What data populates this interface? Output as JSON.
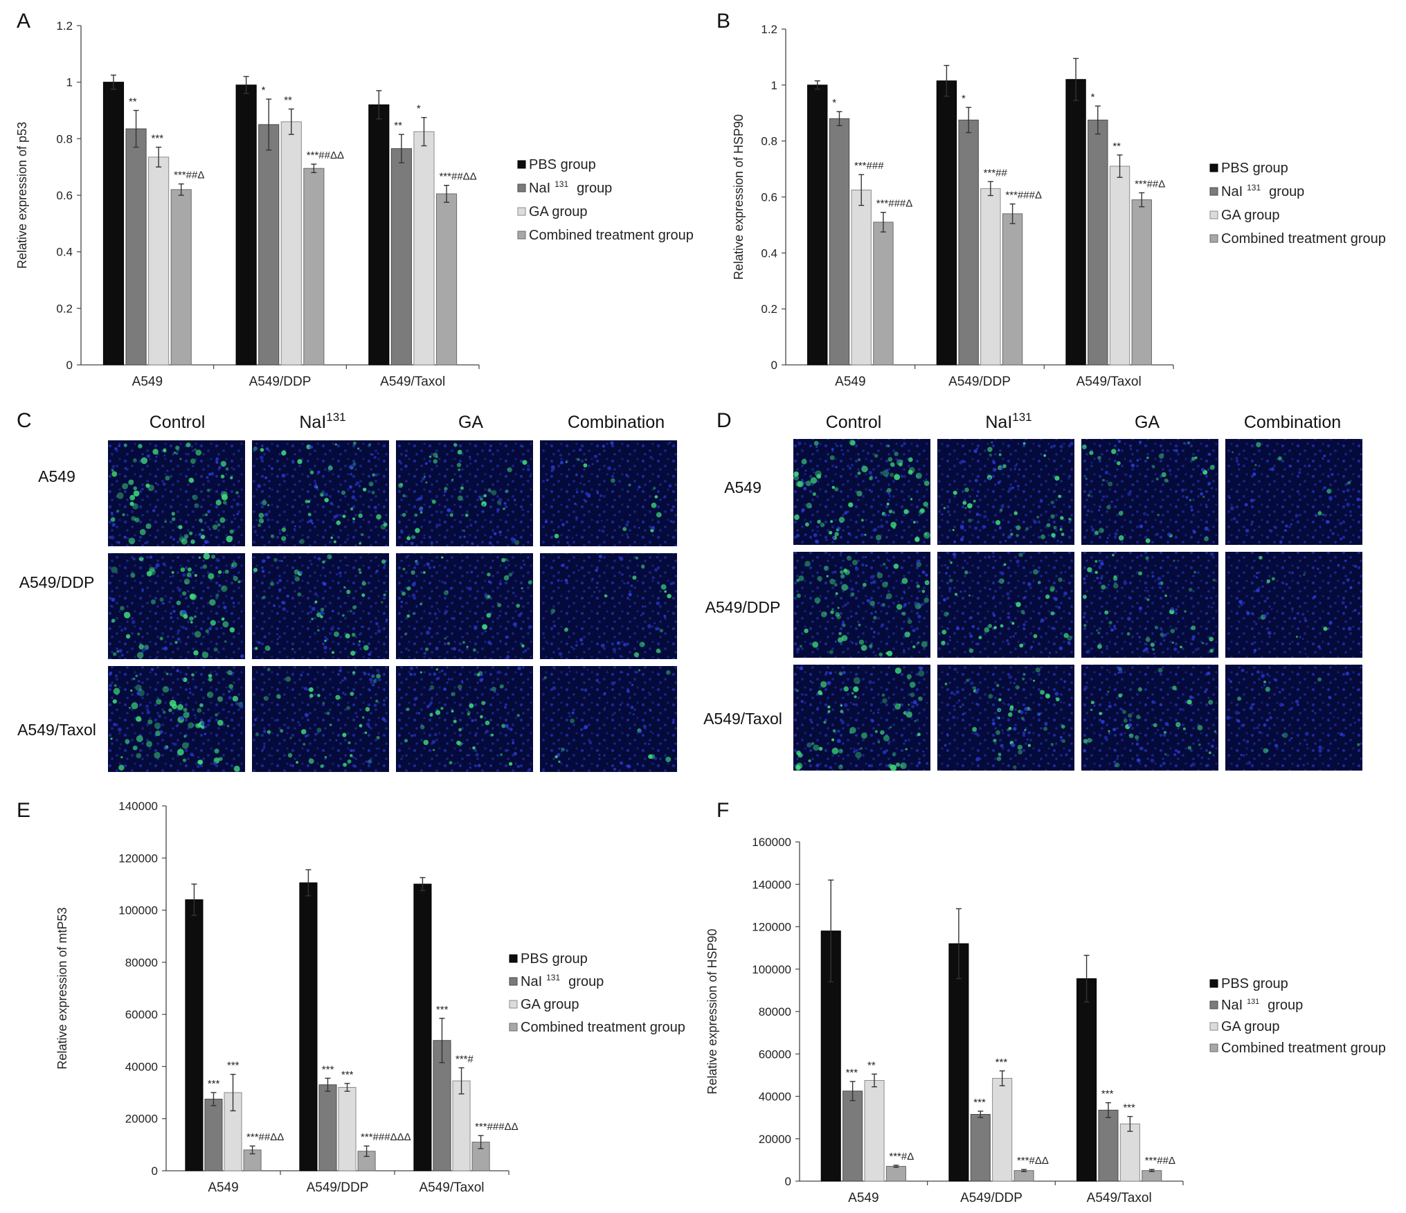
{
  "colors": {
    "pbs": "#0d0d0d",
    "nai": "#7b7b7b",
    "ga": "#dcdcdc",
    "combined": "#a8a8a8",
    "micro_bg": "#040a3a",
    "nucleus": "#2c3cd8",
    "fitc": "#3ee07a"
  },
  "legend": {
    "pbs": "PBS group",
    "nai_pre": "NaI",
    "nai_sup": "131",
    "nai_post": "group",
    "ga": "GA group",
    "combined": "Combined treatment group"
  },
  "chart_data": [
    {
      "panel": "A",
      "type": "bar",
      "ylabel": "Relative expression of p53",
      "ylim": [
        0,
        1.2
      ],
      "yticks": [
        "0",
        "0.2",
        "0.4",
        "0.6",
        "0.8",
        "1",
        "1.2"
      ],
      "categories": [
        "A549",
        "A549/DDP",
        "A549/Taxol"
      ],
      "series": [
        {
          "name": "PBS group",
          "values": [
            1.0,
            0.99,
            0.92
          ],
          "err": [
            0.025,
            0.03,
            0.05
          ],
          "labels": [
            "",
            "",
            ""
          ]
        },
        {
          "name": "NaI 131 group",
          "values": [
            0.835,
            0.85,
            0.765
          ],
          "err": [
            0.065,
            0.09,
            0.05
          ],
          "labels": [
            "**",
            "*",
            "**"
          ]
        },
        {
          "name": "GA group",
          "values": [
            0.735,
            0.86,
            0.825
          ],
          "err": [
            0.035,
            0.045,
            0.05
          ],
          "labels": [
            "***",
            "**",
            "*"
          ]
        },
        {
          "name": "Combined treatment group",
          "values": [
            0.62,
            0.695,
            0.605
          ],
          "err": [
            0.02,
            0.015,
            0.03
          ],
          "labels": [
            "***##Δ",
            "***##ΔΔ",
            "***##ΔΔ"
          ]
        }
      ]
    },
    {
      "panel": "B",
      "type": "bar",
      "ylabel": "Relative expression of HSP90",
      "ylim": [
        0,
        1.2
      ],
      "yticks": [
        "0",
        "0.2",
        "0.4",
        "0.6",
        "0.8",
        "1",
        "1.2"
      ],
      "categories": [
        "A549",
        "A549/DDP",
        "A549/Taxol"
      ],
      "series": [
        {
          "name": "PBS group",
          "values": [
            1.0,
            1.015,
            1.02
          ],
          "err": [
            0.015,
            0.055,
            0.075
          ],
          "labels": [
            "",
            "",
            ""
          ]
        },
        {
          "name": "NaI 131 group",
          "values": [
            0.88,
            0.875,
            0.875
          ],
          "err": [
            0.025,
            0.045,
            0.05
          ],
          "labels": [
            "*",
            "*",
            "*"
          ]
        },
        {
          "name": "GA group",
          "values": [
            0.625,
            0.63,
            0.71
          ],
          "err": [
            0.055,
            0.025,
            0.04
          ],
          "labels": [
            "***###",
            "***##",
            "**"
          ]
        },
        {
          "name": "Combined treatment group",
          "values": [
            0.51,
            0.54,
            0.59
          ],
          "err": [
            0.035,
            0.035,
            0.025
          ],
          "labels": [
            "***###Δ",
            "***###Δ",
            "***##Δ"
          ]
        }
      ]
    },
    {
      "panel": "E",
      "type": "bar",
      "ylabel": "Relative expression of mtP53",
      "ylim": [
        0,
        140000
      ],
      "yticks": [
        "0",
        "20000",
        "40000",
        "60000",
        "80000",
        "100000",
        "120000",
        "140000"
      ],
      "categories": [
        "A549",
        "A549/DDP",
        "A549/Taxol"
      ],
      "series": [
        {
          "name": "PBS group",
          "values": [
            104000,
            110500,
            110000
          ],
          "err": [
            6000,
            5000,
            2500
          ],
          "labels": [
            "",
            "",
            ""
          ]
        },
        {
          "name": "NaI 131 group",
          "values": [
            27500,
            33000,
            50000
          ],
          "err": [
            2500,
            2500,
            8500
          ],
          "labels": [
            "***",
            "***",
            "***"
          ]
        },
        {
          "name": "GA group",
          "values": [
            30000,
            32000,
            34500
          ],
          "err": [
            7000,
            1500,
            5000
          ],
          "labels": [
            "***",
            "***",
            "***#"
          ]
        },
        {
          "name": "Combined treatment group",
          "values": [
            8000,
            7500,
            11000
          ],
          "err": [
            1500,
            2000,
            2500
          ],
          "labels": [
            "***##ΔΔ",
            "***###ΔΔΔ",
            "***###ΔΔ"
          ]
        }
      ]
    },
    {
      "panel": "F",
      "type": "bar",
      "ylabel": "Relative expression of HSP90",
      "ylim": [
        0,
        160000
      ],
      "yticks": [
        "0",
        "20000",
        "40000",
        "60000",
        "80000",
        "100000",
        "120000",
        "140000",
        "160000"
      ],
      "categories": [
        "A549",
        "A549/DDP",
        "A549/Taxol"
      ],
      "series": [
        {
          "name": "PBS group",
          "values": [
            118000,
            112000,
            95500
          ],
          "err": [
            24000,
            16500,
            11000
          ],
          "labels": [
            "",
            "",
            ""
          ]
        },
        {
          "name": "NaI 131 group",
          "values": [
            42500,
            31500,
            33500
          ],
          "err": [
            4500,
            1500,
            3500
          ],
          "labels": [
            "***",
            "***",
            "***"
          ]
        },
        {
          "name": "GA group",
          "values": [
            47500,
            48500,
            27000
          ],
          "err": [
            3000,
            3500,
            3500
          ],
          "labels": [
            "**",
            "***",
            "***"
          ]
        },
        {
          "name": "Combined treatment group",
          "values": [
            7000,
            5000,
            5000
          ],
          "err": [
            500,
            500,
            500
          ],
          "labels": [
            "***#Δ",
            "***#ΔΔ",
            "***##Δ"
          ]
        }
      ]
    }
  ],
  "panels": {
    "A": "A",
    "B": "B",
    "C": "C",
    "D": "D",
    "E": "E",
    "F": "F"
  },
  "micrographs": {
    "columns": [
      {
        "base": "Control",
        "sup": ""
      },
      {
        "base": "NaI",
        "sup": "131"
      },
      {
        "base": "GA",
        "sup": ""
      },
      {
        "base": "Combination",
        "sup": ""
      }
    ],
    "rows": [
      "A549",
      "A549/DDP",
      "A549/Taxol"
    ],
    "green_level_C": [
      [
        0.95,
        0.65,
        0.55,
        0.18
      ],
      [
        0.85,
        0.55,
        0.45,
        0.18
      ],
      [
        0.95,
        0.6,
        0.5,
        0.15
      ]
    ],
    "green_level_D": [
      [
        1.0,
        0.55,
        0.45,
        0.12
      ],
      [
        0.9,
        0.45,
        0.55,
        0.1
      ],
      [
        0.85,
        0.6,
        0.45,
        0.1
      ]
    ]
  }
}
